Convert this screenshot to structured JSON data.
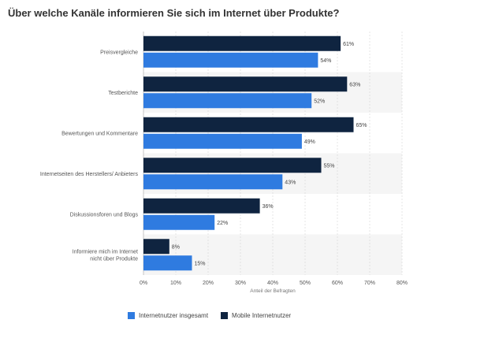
{
  "chart_data": {
    "type": "bar",
    "orientation": "horizontal",
    "title": "Über welche Kanäle informieren Sie sich im Internet über Produkte?",
    "xlabel": "Anteil der Befragten",
    "ylabel": "",
    "xlim": [
      0,
      80
    ],
    "ticks": [
      "0%",
      "10%",
      "20%",
      "30%",
      "40%",
      "50%",
      "60%",
      "70%",
      "80%"
    ],
    "tick_values": [
      0,
      10,
      20,
      30,
      40,
      50,
      60,
      70,
      80
    ],
    "grid": true,
    "legend_position": "bottom-left",
    "categories": [
      [
        "Preisvergleiche"
      ],
      [
        "Testberichte"
      ],
      [
        "Bewertungen und Kommentare"
      ],
      [
        "Internetseiten des Herstellers/ Anbieters"
      ],
      [
        "Diskussionsforen und Blogs"
      ],
      [
        "Informiere mich im Internet",
        "nicht über Produkte"
      ]
    ],
    "series": [
      {
        "name": "Mobile Internetnutzer",
        "color": "#0f2440",
        "values": [
          61,
          63,
          65,
          55,
          36,
          8
        ],
        "labels": [
          "61%",
          "63%",
          "65%",
          "55%",
          "36%",
          "8%"
        ]
      },
      {
        "name": "Internetnutzer insgesamt",
        "color": "#2f7be0",
        "values": [
          54,
          52,
          49,
          43,
          22,
          15
        ],
        "labels": [
          "54%",
          "52%",
          "49%",
          "43%",
          "22%",
          "15%"
        ]
      }
    ],
    "legend_order": [
      1,
      0
    ]
  }
}
